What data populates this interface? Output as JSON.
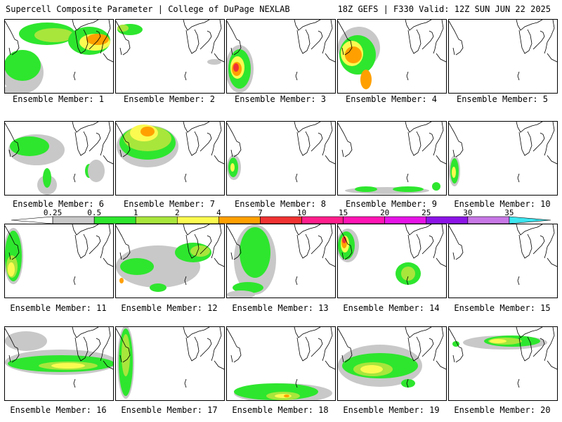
{
  "header": {
    "left": "Supercell Composite Parameter | College of DuPage NEXLAB",
    "right": "18Z GEFS | F330 Valid: 12Z SUN JUN 22 2025"
  },
  "panels": [
    {
      "member": "Ensemble Member: 1"
    },
    {
      "member": "Ensemble Member: 2"
    },
    {
      "member": "Ensemble Member: 3"
    },
    {
      "member": "Ensemble Member: 4"
    },
    {
      "member": "Ensemble Member: 5"
    },
    {
      "member": "Ensemble Member: 6"
    },
    {
      "member": "Ensemble Member: 7"
    },
    {
      "member": "Ensemble Member: 8"
    },
    {
      "member": "Ensemble Member: 9"
    },
    {
      "member": "Ensemble Member: 10"
    },
    {
      "member": "Ensemble Member: 11"
    },
    {
      "member": "Ensemble Member: 12"
    },
    {
      "member": "Ensemble Member: 13"
    },
    {
      "member": "Ensemble Member: 14"
    },
    {
      "member": "Ensemble Member: 15"
    },
    {
      "member": "Ensemble Member: 16"
    },
    {
      "member": "Ensemble Member: 17"
    },
    {
      "member": "Ensemble Member: 18"
    },
    {
      "member": "Ensemble Member: 19"
    },
    {
      "member": "Ensemble Member: 20"
    }
  ],
  "colorbar": {
    "levels": [
      "0.25",
      "0.5",
      "1",
      "2",
      "4",
      "7",
      "10",
      "15",
      "20",
      "25",
      "30",
      "35"
    ],
    "colors": [
      "#c8c8c8",
      "#2ee62e",
      "#a8e63c",
      "#fafa50",
      "#ffa000",
      "#f03232",
      "#ff1e8c",
      "#ff14b4",
      "#e614e6",
      "#8c14e6",
      "#c878e6",
      "#3ce6f0"
    ]
  },
  "shading_colors": {
    "gray": "#c8c8c8",
    "green": "#2ee62e",
    "lime": "#a8e63c",
    "yellow": "#fafa50",
    "orange": "#ffa000",
    "red": "#f03232"
  }
}
